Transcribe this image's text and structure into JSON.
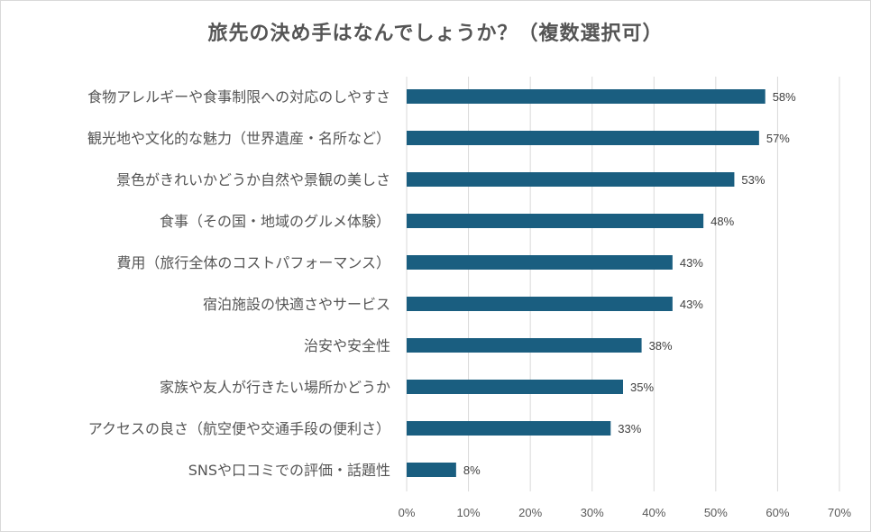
{
  "chart_data": {
    "type": "bar",
    "orientation": "horizontal",
    "title": "旅先の決め手はなんでしょうか？（複数選択可）",
    "categories": [
      "食物アレルギーや食事制限への対応のしやすさ",
      "観光地や文化的な魅力（世界遺産・名所など）",
      "景色がきれいかどうか自然や景観の美しさ",
      "食事（その国・地域のグルメ体験）",
      "費用（旅行全体のコストパフォーマンス）",
      "宿泊施設の快適さやサービス",
      "治安や安全性",
      "家族や友人が行きたい場所かどうか",
      "アクセスの良さ（航空便や交通手段の便利さ）",
      "SNSや口コミでの評価・話題性"
    ],
    "values": [
      58,
      57,
      53,
      48,
      43,
      43,
      38,
      35,
      33,
      8
    ],
    "data_labels": [
      "58%",
      "57%",
      "53%",
      "48%",
      "43%",
      "43%",
      "38%",
      "35%",
      "33%",
      "8%"
    ],
    "xlim": [
      0,
      70
    ],
    "x_ticks": [
      "0%",
      "10%",
      "20%",
      "30%",
      "40%",
      "50%",
      "60%",
      "70%"
    ],
    "grid": true,
    "bar_color": "#1a5e80"
  }
}
